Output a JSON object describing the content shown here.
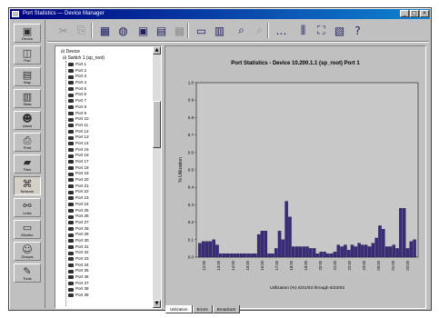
{
  "window": {
    "title": "Port Statistics — Device Manager",
    "controls": [
      "_",
      "□",
      "×"
    ]
  },
  "left_panel": {
    "buttons": [
      {
        "icon": "device-icon",
        "glyph": "▣",
        "label": "Device"
      },
      {
        "icon": "port-icon",
        "glyph": "◫",
        "label": "Port"
      },
      {
        "icon": "map-icon",
        "glyph": "▤",
        "label": "Map"
      },
      {
        "icon": "chart-icon",
        "glyph": "▥",
        "label": "Stats"
      },
      {
        "icon": "users-icon",
        "glyph": "☻",
        "label": "Users"
      },
      {
        "icon": "printer-icon",
        "glyph": "⎙",
        "label": "Print"
      },
      {
        "icon": "folder-icon",
        "glyph": "▰",
        "label": "Files"
      },
      {
        "icon": "network-icon",
        "glyph": "⌘",
        "label": "Network"
      },
      {
        "icon": "link-icon",
        "glyph": "⚯",
        "label": "Links"
      },
      {
        "icon": "monitor-icon",
        "glyph": "▭",
        "label": "Monitor"
      },
      {
        "icon": "people-icon",
        "glyph": "☺",
        "label": "Groups"
      },
      {
        "icon": "tools-icon",
        "glyph": "✎",
        "label": "Tools"
      }
    ]
  },
  "toolbar": {
    "buttons": [
      {
        "icon": "cut-icon",
        "glyph": "✂",
        "disabled": true
      },
      {
        "icon": "copy-icon",
        "glyph": "⎘",
        "disabled": true
      },
      {
        "icon": "open-folder-icon",
        "glyph": "▦",
        "disabled": false
      },
      {
        "icon": "disk-icon",
        "glyph": "◍",
        "disabled": false
      },
      {
        "icon": "device-view-icon",
        "glyph": "▣",
        "disabled": false
      },
      {
        "icon": "port-view-icon",
        "glyph": "▤",
        "disabled": false
      },
      {
        "icon": "grid-icon",
        "glyph": "▦",
        "disabled": true
      },
      {
        "icon": "monitor-icon",
        "glyph": "▭",
        "disabled": false
      },
      {
        "icon": "table-icon",
        "glyph": "▥",
        "disabled": false
      },
      {
        "icon": "magnify-icon",
        "glyph": "⌕",
        "disabled": false
      },
      {
        "icon": "find-icon",
        "glyph": "⌕",
        "disabled": true
      },
      {
        "icon": "ellipsis-icon",
        "glyph": "…",
        "disabled": false
      },
      {
        "icon": "columns-icon",
        "glyph": "⫼",
        "disabled": false
      },
      {
        "icon": "network-icon",
        "glyph": "⛶",
        "disabled": false
      },
      {
        "icon": "clipboard-icon",
        "glyph": "▧",
        "disabled": false
      },
      {
        "icon": "help-icon",
        "glyph": "?",
        "disabled": false
      }
    ]
  },
  "tree": {
    "root_label": "Device",
    "node_label": "Switch 1 (sp_root)",
    "items": [
      "Port 1",
      "Port 2",
      "Port 3",
      "Port 4",
      "Port 5",
      "Port 6",
      "Port 7",
      "Port 8",
      "Port 9",
      "Port 10",
      "Port 11",
      "Port 12",
      "Port 13",
      "Port 14",
      "Port 15",
      "Port 16",
      "Port 17",
      "Port 18",
      "Port 19",
      "Port 20",
      "Port 21",
      "Port 22",
      "Port 23",
      "Port 24",
      "Port 25",
      "Port 26",
      "Port 27",
      "Port 28",
      "Port 29",
      "Port 30",
      "Port 31",
      "Port 32",
      "Port 33",
      "Port 34",
      "Port 35",
      "Port 36",
      "Port 37",
      "Port 38",
      "Port 39"
    ]
  },
  "chart_data": {
    "type": "bar",
    "title": "Port Statistics - Device 10.200.1.1 (sp_root) Port 1",
    "ylabel": "% Utilization",
    "xlabel": "Utilization (%) 6/21/03 through 6/23/03",
    "ylim": [
      0,
      1.0
    ],
    "yticks": [
      "1.0",
      "0.9",
      "0.8",
      "0.7",
      "0.6",
      "0.5",
      "0.4",
      "0.3",
      "0.2",
      "0.1",
      "0.0"
    ],
    "xticks": [
      "12:00",
      "13:00",
      "14:00",
      "15:00",
      "16:00",
      "17:00",
      "18:00",
      "19:00",
      "20:00",
      "21:00",
      "22:00",
      "23:00",
      "00:00",
      "01:00",
      "02:00"
    ],
    "values": [
      0.08,
      0.09,
      0.09,
      0.09,
      0.1,
      0.07,
      0.02,
      0.02,
      0.02,
      0.02,
      0.02,
      0.02,
      0.02,
      0.02,
      0.02,
      0.02,
      0.02,
      0.13,
      0.15,
      0.15,
      0.02,
      0.02,
      0.05,
      0.15,
      0.1,
      0.32,
      0.23,
      0.06,
      0.06,
      0.06,
      0.06,
      0.06,
      0.05,
      0.05,
      0.02,
      0.03,
      0.03,
      0.02,
      0.02,
      0.03,
      0.07,
      0.06,
      0.07,
      0.04,
      0.07,
      0.06,
      0.08,
      0.07,
      0.07,
      0.06,
      0.08,
      0.11,
      0.18,
      0.16,
      0.06,
      0.06,
      0.07,
      0.05,
      0.28,
      0.28,
      0.05,
      0.09,
      0.1
    ],
    "bar_color": "#3a2a7a",
    "grid": false
  },
  "tabs": [
    {
      "label": "Utilization",
      "active": true
    },
    {
      "label": "Errors",
      "active": false
    },
    {
      "label": "Broadcast",
      "active": false
    }
  ]
}
